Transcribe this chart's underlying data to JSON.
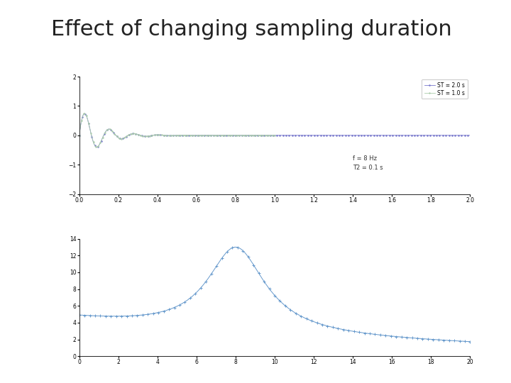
{
  "title": "Effect of changing sampling duration",
  "title_fontsize": 22,
  "title_color": "#222222",
  "background_color": "#ffffff",
  "top_plot": {
    "xlim": [
      0,
      2
    ],
    "ylim": [
      -2,
      2
    ],
    "xticks": [
      0,
      0.2,
      0.4,
      0.6,
      0.8,
      1.0,
      1.2,
      1.4,
      1.6,
      1.8,
      2.0
    ],
    "yticks": [
      -2,
      -1,
      0,
      1,
      2
    ],
    "f": 8,
    "T2": 0.1,
    "ST1": 2.0,
    "ST2": 1.0,
    "legend_labels": [
      "ST = 2.0 s",
      "ST = 1.0 s"
    ],
    "annotation": "f = 8 Hz\nT2 = 0.1 s",
    "line_color_1": "#7777cc",
    "line_color_2": "#aaccaa",
    "n_samples_1": 500,
    "n_samples_2": 250
  },
  "bottom_plot": {
    "xlim": [
      0,
      20
    ],
    "ylim": [
      0,
      14
    ],
    "xticks": [
      0,
      2,
      4,
      6,
      8,
      10,
      12,
      14,
      16,
      18,
      20
    ],
    "yticks": [
      0,
      2,
      4,
      6,
      8,
      10,
      12,
      14
    ],
    "line_color": "#6699cc",
    "peak_freq": 8.0,
    "peak_val": 13.0,
    "start_val": 4.5,
    "end_val": 0.8,
    "n_markers": 75
  }
}
